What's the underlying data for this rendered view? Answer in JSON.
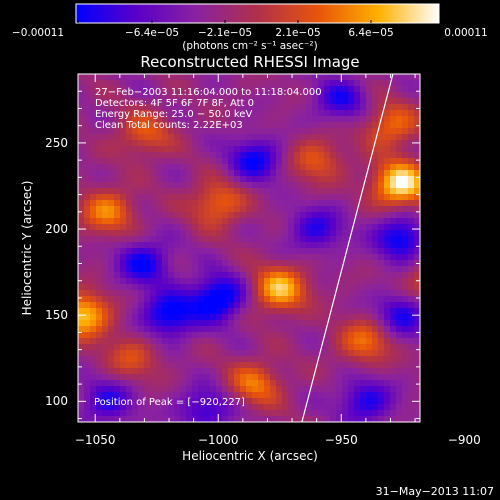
{
  "chart_data": {
    "type": "heatmap",
    "title": "Reconstructed RHESSI Image",
    "xlabel": "Heliocentric X (arcsec)",
    "ylabel": "Heliocentric Y (arcsec)",
    "xlim": [
      -1057,
      -918
    ],
    "ylim": [
      88,
      290
    ],
    "xticks": [
      {
        "v": -1050,
        "label": "−1050"
      },
      {
        "v": -1000,
        "label": "−1000"
      },
      {
        "v": -950,
        "label": "−950"
      },
      {
        "v": -900,
        "label": "−900"
      }
    ],
    "yticks": [
      {
        "v": 100,
        "label": "100"
      },
      {
        "v": 150,
        "label": "150"
      },
      {
        "v": 200,
        "label": "200"
      },
      {
        "v": 250,
        "label": "250"
      }
    ],
    "colorbar": {
      "min": -0.00011,
      "max": 0.00011,
      "tick_labels": [
        "−0.00011",
        "−6.4e−05",
        "−2.1e−05",
        "2.1e−05",
        "6.4e−05",
        "0.00011"
      ],
      "units_label": "(photons cm⁻² s⁻¹ asec⁻²)",
      "colors": [
        "#0000ff",
        "#5a00c8",
        "#8a22a0",
        "#b0304a",
        "#e8540a",
        "#ffb000",
        "#ffffff"
      ]
    },
    "info_lines": [
      "27−Feb−2003 11:16:04.000  to  11:18:04.000",
      "Detectors: 4F 5F 6F 7F 8F, Att 0",
      "Energy Range: 25.0 − 50.0 keV",
      "Clean     Total counts: 2.22E+03"
    ],
    "peak_label": "Position of Peak = [−920,227]",
    "peak": {
      "x": -920,
      "y": 227
    },
    "limb_line": [
      {
        "x": -966,
        "y": 88
      },
      {
        "x": -929,
        "y": 290
      }
    ],
    "hotspots": [
      {
        "x": -926,
        "y": 226,
        "v": 1.0
      },
      {
        "x": -930,
        "y": 260,
        "v": 0.55
      },
      {
        "x": -905,
        "y": 205,
        "v": 0.65
      },
      {
        "x": -912,
        "y": 170,
        "v": 0.5
      },
      {
        "x": -892,
        "y": 185,
        "v": 0.45
      },
      {
        "x": -940,
        "y": 135,
        "v": 0.55
      },
      {
        "x": -975,
        "y": 165,
        "v": 0.8
      },
      {
        "x": -1000,
        "y": 215,
        "v": 0.55
      },
      {
        "x": -1045,
        "y": 210,
        "v": 0.6
      },
      {
        "x": -1055,
        "y": 150,
        "v": 0.85
      },
      {
        "x": -1030,
        "y": 255,
        "v": 0.45
      },
      {
        "x": -985,
        "y": 110,
        "v": 0.55
      },
      {
        "x": -1035,
        "y": 125,
        "v": 0.4
      },
      {
        "x": -960,
        "y": 240,
        "v": 0.45
      },
      {
        "x": -900,
        "y": 125,
        "v": 0.4
      }
    ],
    "coldspots": [
      {
        "x": -1000,
        "y": 160,
        "v": -0.8
      },
      {
        "x": -1020,
        "y": 150,
        "v": -0.7
      },
      {
        "x": -1030,
        "y": 180,
        "v": -0.6
      },
      {
        "x": -985,
        "y": 240,
        "v": -0.6
      },
      {
        "x": -925,
        "y": 195,
        "v": -0.7
      },
      {
        "x": -950,
        "y": 275,
        "v": -0.5
      },
      {
        "x": -1005,
        "y": 95,
        "v": -0.5
      },
      {
        "x": -940,
        "y": 100,
        "v": -0.55
      },
      {
        "x": -925,
        "y": 150,
        "v": -0.55
      },
      {
        "x": -895,
        "y": 100,
        "v": -0.7
      },
      {
        "x": -1045,
        "y": 100,
        "v": -0.5
      },
      {
        "x": -960,
        "y": 200,
        "v": -0.5
      }
    ]
  },
  "footer": {
    "date": "31−May−2013 11:07"
  }
}
